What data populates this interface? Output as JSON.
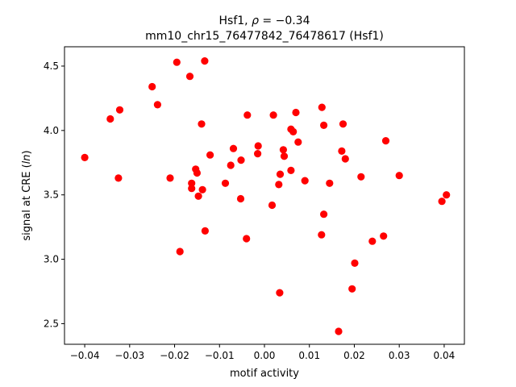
{
  "chart_data": {
    "type": "scatter",
    "title_line1": "Hsf1, ρ = −0.34",
    "title_line2": "mm10_chr15_76477842_76478617 (Hsf1)",
    "xlabel": "motif activity",
    "ylabel": "signal at CRE (ln)",
    "xlim": [
      -0.0445,
      0.0445
    ],
    "ylim": [
      2.34,
      4.65
    ],
    "xticks": [
      -0.04,
      -0.03,
      -0.02,
      -0.01,
      0.0,
      0.01,
      0.02,
      0.03,
      0.04
    ],
    "xtick_labels": [
      "−0.04",
      "−0.03",
      "−0.02",
      "−0.01",
      "0.00",
      "0.01",
      "0.02",
      "0.03",
      "0.04"
    ],
    "yticks": [
      2.5,
      3.0,
      3.5,
      4.0,
      4.5
    ],
    "ytick_labels": [
      "2.5",
      "3.0",
      "3.5",
      "4.0",
      "4.5"
    ],
    "grid": false,
    "marker_color": "#ff0000",
    "points": [
      {
        "x": -0.04,
        "y": 3.79
      },
      {
        "x": -0.0343,
        "y": 4.09
      },
      {
        "x": -0.0322,
        "y": 4.16
      },
      {
        "x": -0.0325,
        "y": 3.63
      },
      {
        "x": -0.025,
        "y": 4.34
      },
      {
        "x": -0.0238,
        "y": 4.2
      },
      {
        "x": -0.021,
        "y": 3.63
      },
      {
        "x": -0.0195,
        "y": 4.53
      },
      {
        "x": -0.0188,
        "y": 3.06
      },
      {
        "x": -0.0166,
        "y": 4.42
      },
      {
        "x": -0.0162,
        "y": 3.59
      },
      {
        "x": -0.0162,
        "y": 3.55
      },
      {
        "x": -0.0153,
        "y": 3.7
      },
      {
        "x": -0.015,
        "y": 3.67
      },
      {
        "x": -0.0147,
        "y": 3.49
      },
      {
        "x": -0.014,
        "y": 4.05
      },
      {
        "x": -0.0138,
        "y": 3.54
      },
      {
        "x": -0.0133,
        "y": 4.54
      },
      {
        "x": -0.0132,
        "y": 3.22
      },
      {
        "x": -0.0121,
        "y": 3.81
      },
      {
        "x": -0.0087,
        "y": 3.59
      },
      {
        "x": -0.0075,
        "y": 3.73
      },
      {
        "x": -0.0069,
        "y": 3.86
      },
      {
        "x": -0.0052,
        "y": 3.77
      },
      {
        "x": -0.0053,
        "y": 3.47
      },
      {
        "x": -0.004,
        "y": 3.16
      },
      {
        "x": -0.0038,
        "y": 4.12
      },
      {
        "x": -0.0014,
        "y": 3.88
      },
      {
        "x": -0.0015,
        "y": 3.82
      },
      {
        "x": 0.0017,
        "y": 3.42
      },
      {
        "x": 0.002,
        "y": 4.12
      },
      {
        "x": 0.0032,
        "y": 3.58
      },
      {
        "x": 0.0035,
        "y": 3.66
      },
      {
        "x": 0.0034,
        "y": 2.74
      },
      {
        "x": 0.0042,
        "y": 3.85
      },
      {
        "x": 0.0044,
        "y": 3.8
      },
      {
        "x": 0.0059,
        "y": 4.01
      },
      {
        "x": 0.0059,
        "y": 3.69
      },
      {
        "x": 0.0064,
        "y": 3.99
      },
      {
        "x": 0.007,
        "y": 4.14
      },
      {
        "x": 0.0075,
        "y": 3.91
      },
      {
        "x": 0.009,
        "y": 3.61
      },
      {
        "x": 0.0127,
        "y": 3.19
      },
      {
        "x": 0.0128,
        "y": 4.18
      },
      {
        "x": 0.0132,
        "y": 4.04
      },
      {
        "x": 0.0132,
        "y": 3.35
      },
      {
        "x": 0.0145,
        "y": 3.59
      },
      {
        "x": 0.0165,
        "y": 2.44
      },
      {
        "x": 0.0172,
        "y": 3.84
      },
      {
        "x": 0.0175,
        "y": 4.05
      },
      {
        "x": 0.018,
        "y": 3.78
      },
      {
        "x": 0.0195,
        "y": 2.77
      },
      {
        "x": 0.0201,
        "y": 2.97
      },
      {
        "x": 0.0215,
        "y": 3.64
      },
      {
        "x": 0.024,
        "y": 3.14
      },
      {
        "x": 0.0265,
        "y": 3.18
      },
      {
        "x": 0.027,
        "y": 3.92
      },
      {
        "x": 0.03,
        "y": 3.65
      },
      {
        "x": 0.0395,
        "y": 3.45
      },
      {
        "x": 0.0405,
        "y": 3.5
      }
    ]
  }
}
